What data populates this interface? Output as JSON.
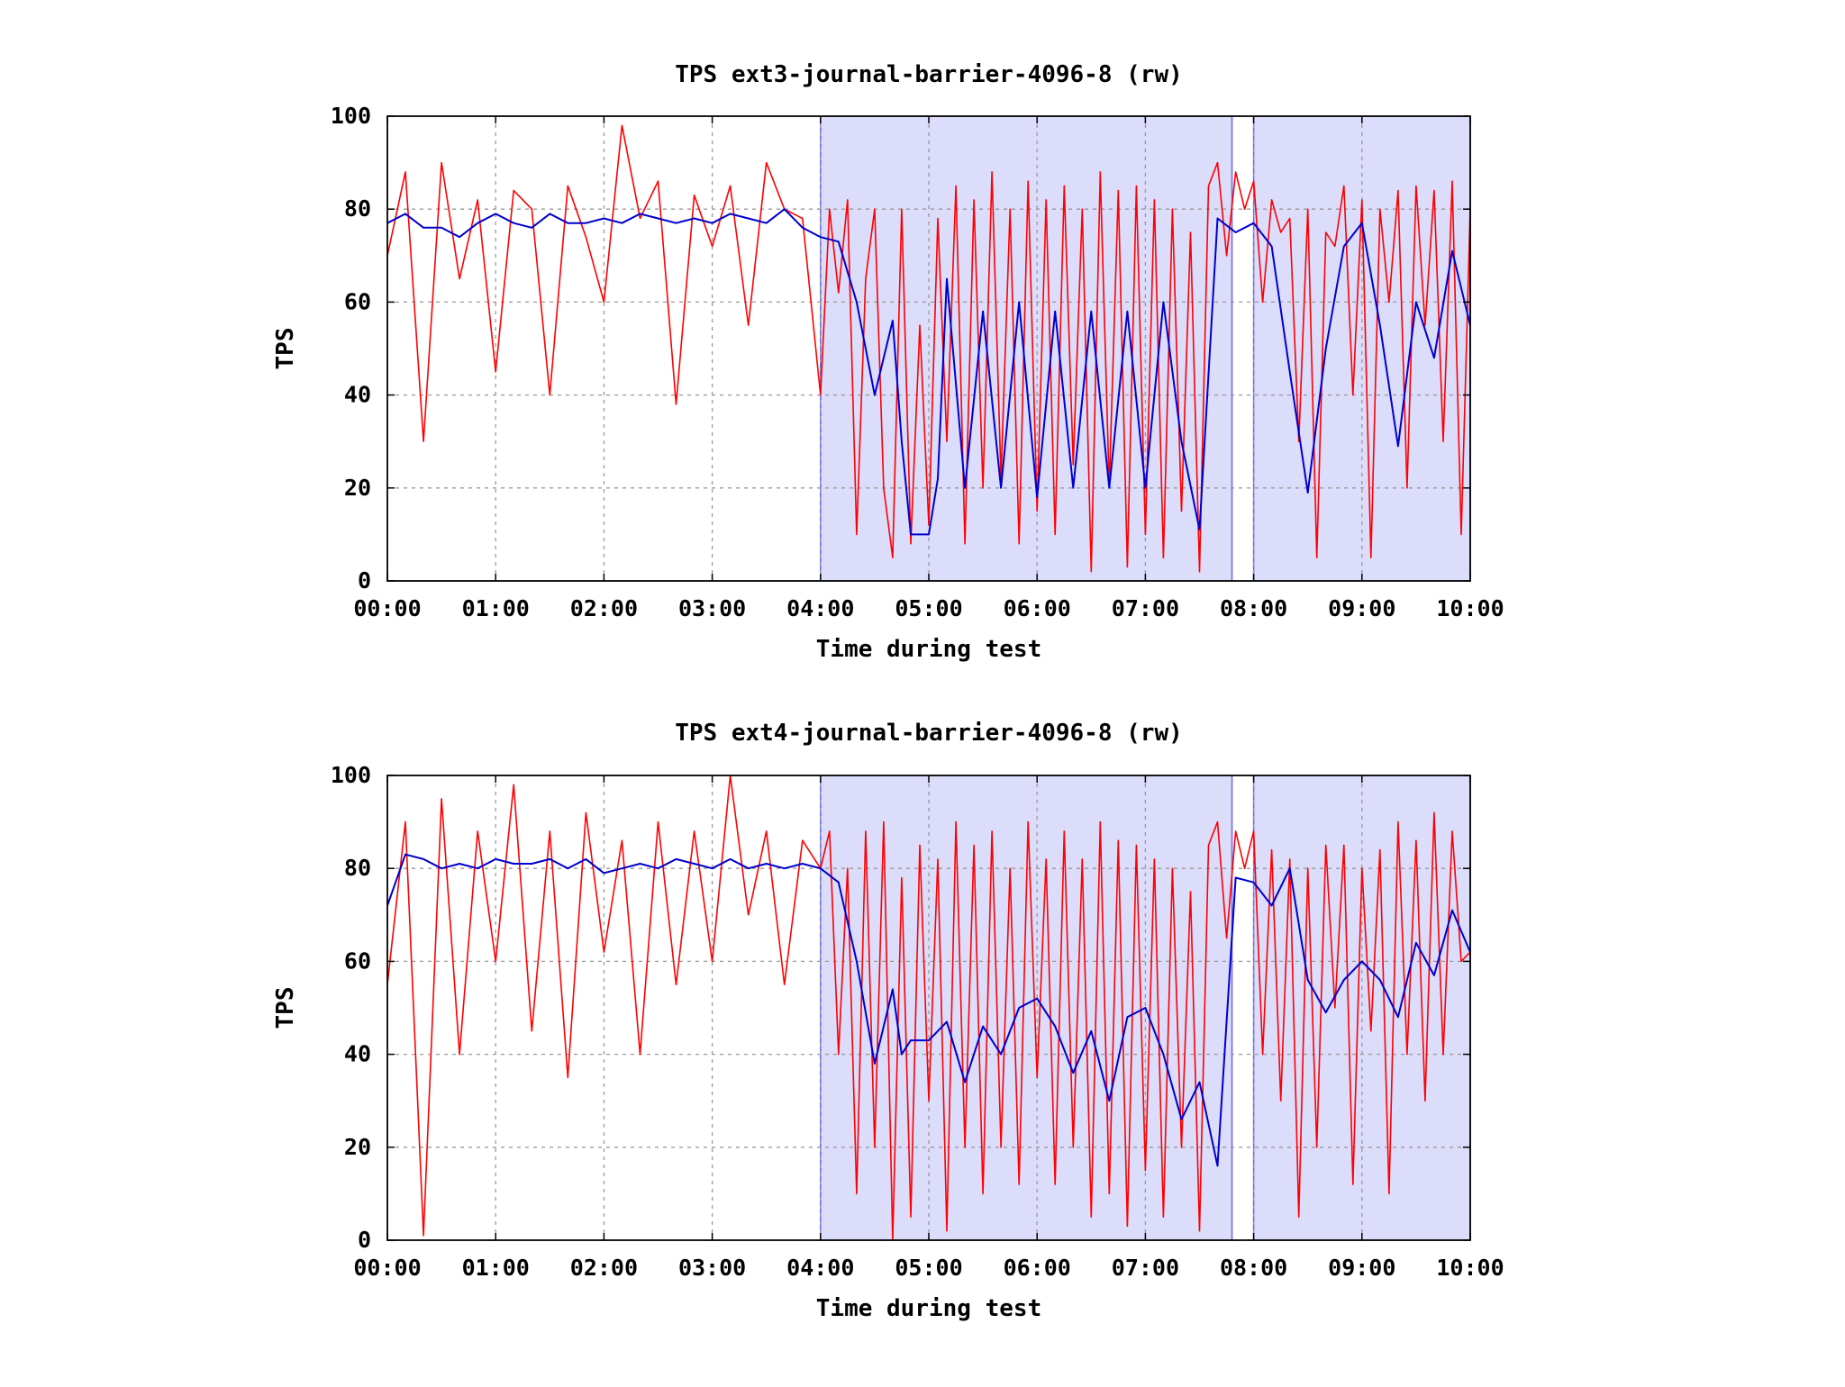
{
  "colors": {
    "raw_series": "#ff0000",
    "smoothed_series": "#0000cc",
    "highlight_band": "#dcdcfb",
    "grid": "#999999",
    "background": "#ffffff"
  },
  "chart_data": [
    {
      "type": "line",
      "title": "TPS ext3-journal-barrier-4096-8 (rw)",
      "xlabel": "Time during test",
      "ylabel": "TPS",
      "xlim": [
        "00:00",
        "10:00"
      ],
      "ylim": [
        0,
        100
      ],
      "x_ticks": [
        "00:00",
        "01:00",
        "02:00",
        "03:00",
        "04:00",
        "05:00",
        "06:00",
        "07:00",
        "08:00",
        "09:00",
        "10:00"
      ],
      "y_ticks": [
        "0",
        "20",
        "40",
        "60",
        "80",
        "100"
      ],
      "grid": true,
      "legend": "none",
      "shaded_intervals": [
        [
          "04:00",
          "07:48"
        ],
        [
          "08:00",
          "10:00"
        ]
      ],
      "series": [
        {
          "role": "raw",
          "color": "#ff0000",
          "x": [
            "00:00",
            "00:10",
            "00:20",
            "00:30",
            "00:40",
            "00:50",
            "01:00",
            "01:10",
            "01:20",
            "01:30",
            "01:40",
            "01:50",
            "02:00",
            "02:10",
            "02:20",
            "02:30",
            "02:40",
            "02:50",
            "03:00",
            "03:10",
            "03:20",
            "03:30",
            "03:40",
            "03:50",
            "04:00",
            "04:05",
            "04:10",
            "04:15",
            "04:20",
            "04:25",
            "04:30",
            "04:35",
            "04:40",
            "04:45",
            "04:50",
            "04:55",
            "05:00",
            "05:05",
            "05:10",
            "05:15",
            "05:20",
            "05:25",
            "05:30",
            "05:35",
            "05:40",
            "05:45",
            "05:50",
            "05:55",
            "06:00",
            "06:05",
            "06:10",
            "06:15",
            "06:20",
            "06:25",
            "06:30",
            "06:35",
            "06:40",
            "06:45",
            "06:50",
            "06:55",
            "07:00",
            "07:05",
            "07:10",
            "07:15",
            "07:20",
            "07:25",
            "07:30",
            "07:35",
            "07:40",
            "07:45",
            "07:50",
            "07:55",
            "08:00",
            "08:05",
            "08:10",
            "08:15",
            "08:20",
            "08:25",
            "08:30",
            "08:35",
            "08:40",
            "08:45",
            "08:50",
            "08:55",
            "09:00",
            "09:05",
            "09:10",
            "09:15",
            "09:20",
            "09:25",
            "09:30",
            "09:35",
            "09:40",
            "09:45",
            "09:50",
            "09:55",
            "10:00"
          ],
          "y": [
            70,
            88,
            30,
            90,
            65,
            82,
            45,
            84,
            80,
            40,
            85,
            74,
            60,
            98,
            78,
            86,
            38,
            83,
            72,
            85,
            55,
            90,
            80,
            78,
            40,
            80,
            62,
            82,
            10,
            65,
            80,
            20,
            5,
            80,
            8,
            55,
            12,
            78,
            30,
            85,
            8,
            82,
            20,
            88,
            22,
            80,
            8,
            86,
            15,
            82,
            10,
            85,
            25,
            80,
            2,
            88,
            20,
            84,
            3,
            85,
            10,
            82,
            5,
            80,
            15,
            75,
            2,
            85,
            90,
            70,
            88,
            80,
            86,
            60,
            82,
            75,
            78,
            30,
            80,
            5,
            75,
            72,
            85,
            40,
            82,
            5,
            80,
            60,
            84,
            20,
            85,
            55,
            84,
            30,
            86,
            10,
            80
          ]
        },
        {
          "role": "smoothed",
          "color": "#0000cc",
          "x": [
            "00:00",
            "00:10",
            "00:20",
            "00:30",
            "00:40",
            "00:50",
            "01:00",
            "01:10",
            "01:20",
            "01:30",
            "01:40",
            "01:50",
            "02:00",
            "02:10",
            "02:20",
            "02:30",
            "02:40",
            "02:50",
            "03:00",
            "03:10",
            "03:20",
            "03:30",
            "03:40",
            "03:50",
            "04:00",
            "04:10",
            "04:20",
            "04:30",
            "04:40",
            "04:45",
            "04:50",
            "05:00",
            "05:05",
            "05:10",
            "05:20",
            "05:30",
            "05:40",
            "05:50",
            "06:00",
            "06:10",
            "06:20",
            "06:30",
            "06:40",
            "06:50",
            "07:00",
            "07:10",
            "07:20",
            "07:30",
            "07:40",
            "07:50",
            "08:00",
            "08:10",
            "08:20",
            "08:30",
            "08:40",
            "08:50",
            "09:00",
            "09:10",
            "09:20",
            "09:30",
            "09:40",
            "09:50",
            "10:00"
          ],
          "y": [
            77,
            79,
            76,
            76,
            74,
            77,
            79,
            77,
            76,
            79,
            77,
            77,
            78,
            77,
            79,
            78,
            77,
            78,
            77,
            79,
            78,
            77,
            80,
            76,
            74,
            73,
            60,
            40,
            56,
            30,
            10,
            10,
            22,
            65,
            20,
            58,
            20,
            60,
            18,
            58,
            20,
            58,
            20,
            58,
            20,
            60,
            30,
            11,
            78,
            75,
            77,
            72,
            45,
            19,
            50,
            72,
            77,
            55,
            29,
            60,
            48,
            71,
            55
          ]
        }
      ]
    },
    {
      "type": "line",
      "title": "TPS ext4-journal-barrier-4096-8 (rw)",
      "xlabel": "Time during test",
      "ylabel": "TPS",
      "xlim": [
        "00:00",
        "10:00"
      ],
      "ylim": [
        0,
        100
      ],
      "x_ticks": [
        "00:00",
        "01:00",
        "02:00",
        "03:00",
        "04:00",
        "05:00",
        "06:00",
        "07:00",
        "08:00",
        "09:00",
        "10:00"
      ],
      "y_ticks": [
        "0",
        "20",
        "40",
        "60",
        "80",
        "100"
      ],
      "grid": true,
      "legend": "none",
      "shaded_intervals": [
        [
          "04:00",
          "07:48"
        ],
        [
          "08:00",
          "10:00"
        ]
      ],
      "series": [
        {
          "role": "raw",
          "color": "#ff0000",
          "x": [
            "00:00",
            "00:10",
            "00:20",
            "00:30",
            "00:40",
            "00:50",
            "01:00",
            "01:10",
            "01:20",
            "01:30",
            "01:40",
            "01:50",
            "02:00",
            "02:10",
            "02:20",
            "02:30",
            "02:40",
            "02:50",
            "03:00",
            "03:10",
            "03:20",
            "03:30",
            "03:40",
            "03:50",
            "04:00",
            "04:05",
            "04:10",
            "04:15",
            "04:20",
            "04:25",
            "04:30",
            "04:35",
            "04:40",
            "04:45",
            "04:50",
            "04:55",
            "05:00",
            "05:05",
            "05:10",
            "05:15",
            "05:20",
            "05:25",
            "05:30",
            "05:35",
            "05:40",
            "05:45",
            "05:50",
            "05:55",
            "06:00",
            "06:05",
            "06:10",
            "06:15",
            "06:20",
            "06:25",
            "06:30",
            "06:35",
            "06:40",
            "06:45",
            "06:50",
            "06:55",
            "07:00",
            "07:05",
            "07:10",
            "07:15",
            "07:20",
            "07:25",
            "07:30",
            "07:35",
            "07:40",
            "07:45",
            "07:50",
            "07:55",
            "08:00",
            "08:05",
            "08:10",
            "08:15",
            "08:20",
            "08:25",
            "08:30",
            "08:35",
            "08:40",
            "08:45",
            "08:50",
            "08:55",
            "09:00",
            "09:05",
            "09:10",
            "09:15",
            "09:20",
            "09:25",
            "09:30",
            "09:35",
            "09:40",
            "09:45",
            "09:50",
            "09:55",
            "10:00"
          ],
          "y": [
            55,
            90,
            1,
            95,
            40,
            88,
            60,
            98,
            45,
            88,
            35,
            92,
            62,
            86,
            40,
            90,
            55,
            88,
            60,
            100,
            70,
            88,
            55,
            86,
            80,
            88,
            40,
            80,
            10,
            88,
            20,
            90,
            0,
            78,
            5,
            85,
            30,
            82,
            2,
            90,
            20,
            85,
            10,
            88,
            20,
            80,
            12,
            90,
            35,
            82,
            12,
            88,
            20,
            82,
            5,
            90,
            10,
            86,
            3,
            85,
            15,
            82,
            5,
            80,
            20,
            75,
            2,
            85,
            90,
            65,
            88,
            80,
            88,
            40,
            84,
            30,
            82,
            5,
            80,
            20,
            85,
            50,
            85,
            12,
            80,
            45,
            84,
            10,
            90,
            40,
            86,
            30,
            92,
            40,
            88,
            60,
            62
          ]
        },
        {
          "role": "smoothed",
          "color": "#0000cc",
          "x": [
            "00:00",
            "00:10",
            "00:20",
            "00:30",
            "00:40",
            "00:50",
            "01:00",
            "01:10",
            "01:20",
            "01:30",
            "01:40",
            "01:50",
            "02:00",
            "02:10",
            "02:20",
            "02:30",
            "02:40",
            "02:50",
            "03:00",
            "03:10",
            "03:20",
            "03:30",
            "03:40",
            "03:50",
            "04:00",
            "04:10",
            "04:20",
            "04:30",
            "04:40",
            "04:45",
            "04:50",
            "05:00",
            "05:10",
            "05:20",
            "05:30",
            "05:40",
            "05:50",
            "06:00",
            "06:10",
            "06:20",
            "06:30",
            "06:40",
            "06:50",
            "07:00",
            "07:10",
            "07:20",
            "07:30",
            "07:40",
            "07:50",
            "08:00",
            "08:10",
            "08:20",
            "08:30",
            "08:40",
            "08:50",
            "09:00",
            "09:10",
            "09:20",
            "09:30",
            "09:40",
            "09:50",
            "10:00"
          ],
          "y": [
            72,
            83,
            82,
            80,
            81,
            80,
            82,
            81,
            81,
            82,
            80,
            82,
            79,
            80,
            81,
            80,
            82,
            81,
            80,
            82,
            80,
            81,
            80,
            81,
            80,
            77,
            60,
            38,
            54,
            40,
            43,
            43,
            47,
            34,
            46,
            40,
            50,
            52,
            46,
            36,
            45,
            30,
            48,
            50,
            40,
            26,
            34,
            16,
            78,
            77,
            72,
            80,
            56,
            49,
            56,
            60,
            56,
            48,
            64,
            57,
            71,
            62
          ]
        }
      ]
    }
  ]
}
